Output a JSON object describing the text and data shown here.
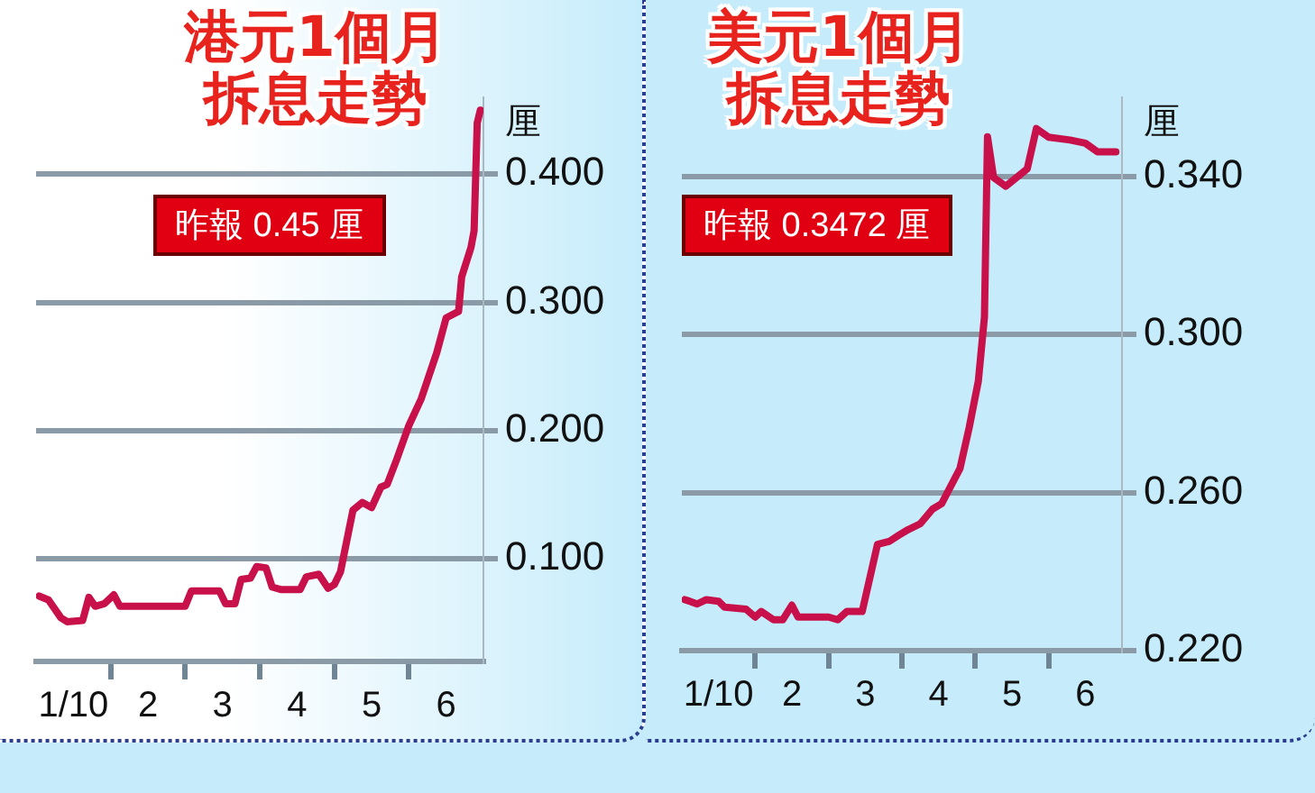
{
  "chart_data": [
    {
      "type": "line",
      "title": "港元1個月拆息走勢",
      "ylabel": "厘",
      "annotations": [
        "昨報 0.45 厘"
      ],
      "color": "#c8104a",
      "marker": "none",
      "grid": "y",
      "x": [
        "--10-01T01:00",
        "--10-01T04:00",
        "--10-01T08:00",
        "--10-01T10:00",
        "--10-01T15:00",
        "--10-01T17:00",
        "--10-01T19:00",
        "--10-01T22:00",
        "--10-02T01:00",
        "--10-02T03:00",
        "--10-03T00:00",
        "--10-03T02:00",
        "--10-03T11:00",
        "--10-03T13:00",
        "--10-03T16:00",
        "--10-03T18:00",
        "--10-03T21:00",
        "--10-03T23:00",
        "--10-04T02:00",
        "--10-04T04:00",
        "--10-04T07:00",
        "--10-04T13:00",
        "--10-04T15:00",
        "--10-04T19:00",
        "--10-04T22:00",
        "--10-05T00:00",
        "--10-05T02:00",
        "--10-05T06:00",
        "--10-05T09:00",
        "--10-05T12:00",
        "--10-05T15:00",
        "--10-05T17:00",
        "--10-05T20:00",
        "--10-06T00:00",
        "--10-06T04:00",
        "--10-06T09:00",
        "--10-06T12:00",
        "--10-06T16:00",
        "--10-06T17:00",
        "--10-06T20:00",
        "--10-06T21:00",
        "--10-06T22:00",
        "--10-06T23:00"
      ],
      "values": [
        0.071,
        0.068,
        0.054,
        0.051,
        0.052,
        0.07,
        0.063,
        0.065,
        0.072,
        0.063,
        0.063,
        0.075,
        0.075,
        0.065,
        0.065,
        0.084,
        0.085,
        0.094,
        0.093,
        0.078,
        0.076,
        0.076,
        0.086,
        0.088,
        0.077,
        0.08,
        0.09,
        0.138,
        0.144,
        0.14,
        0.156,
        0.158,
        0.177,
        0.204,
        0.225,
        0.261,
        0.288,
        0.293,
        0.32,
        0.343,
        0.356,
        0.44,
        0.45
      ],
      "xlim": [
        "--10-01T00:00",
        "--10-07T00:00"
      ],
      "xticks": [
        {
          "value": "--10-01T12:00",
          "label": "1/10"
        },
        {
          "value": "--10-02T00:00",
          "label": null
        },
        {
          "value": "--10-02T12:00",
          "label": "2"
        },
        {
          "value": "--10-03T00:00",
          "label": null
        },
        {
          "value": "--10-03T12:00",
          "label": "3"
        },
        {
          "value": "--10-04T00:00",
          "label": null
        },
        {
          "value": "--10-04T12:00",
          "label": "4"
        },
        {
          "value": "--10-05T00:00",
          "label": null
        },
        {
          "value": "--10-05T12:00",
          "label": "5"
        },
        {
          "value": "--10-06T00:00",
          "label": null
        },
        {
          "value": "--10-06T12:00",
          "label": "6"
        }
      ],
      "ylim": [
        0.02,
        0.46
      ],
      "yticks": [
        {
          "value": 0.1,
          "label": "0.100"
        },
        {
          "value": 0.2,
          "label": "0.200"
        },
        {
          "value": 0.3,
          "label": "0.300"
        },
        {
          "value": 0.4,
          "label": "0.400"
        }
      ]
    },
    {
      "type": "line",
      "title": "美元1個月拆息走勢",
      "ylabel": "厘",
      "annotations": [
        "昨報 0.3472 厘"
      ],
      "color": "#c8104a",
      "marker": "none",
      "grid": "y",
      "x": [
        "--10-01T01:00",
        "--10-01T05:00",
        "--10-01T08:00",
        "--10-01T12:00",
        "--10-01T14:00",
        "--10-01T21:00",
        "--10-02T00:00",
        "--10-02T02:00",
        "--10-02T06:00",
        "--10-02T09:00",
        "--10-02T12:00",
        "--10-02T14:00",
        "--10-03T00:00",
        "--10-03T03:00",
        "--10-03T06:00",
        "--10-03T11:00",
        "--10-03T16:00",
        "--10-03T20:00",
        "--10-03T23:00",
        "--10-04T02:00",
        "--10-04T06:00",
        "--10-04T10:00",
        "--10-04T13:00",
        "--10-04T19:00",
        "--10-04T22:00",
        "--10-05T01:00",
        "--10-05T03:00",
        "--10-05T04:00",
        "--10-05T06:00",
        "--10-05T10:00",
        "--10-05T17:00",
        "--10-05T20:00",
        "--10-06T00:00",
        "--10-06T07:00",
        "--10-06T12:00",
        "--10-06T16:00",
        "--10-06T22:00"
      ],
      "values": [
        0.2329,
        0.2318,
        0.2329,
        0.2325,
        0.231,
        0.2305,
        0.2285,
        0.2299,
        0.2278,
        0.2278,
        0.2315,
        0.2285,
        0.2285,
        0.2278,
        0.2299,
        0.2299,
        0.2469,
        0.2477,
        0.2492,
        0.2506,
        0.2521,
        0.2558,
        0.2572,
        0.2661,
        0.2764,
        0.2882,
        0.3044,
        0.35,
        0.3397,
        0.3375,
        0.3419,
        0.3521,
        0.3499,
        0.3492,
        0.3484,
        0.3462,
        0.3462
      ],
      "xlim": [
        "--10-01T00:00",
        "--10-07T00:00"
      ],
      "xticks": [
        {
          "value": "--10-01T12:00",
          "label": "1/10"
        },
        {
          "value": "--10-02T00:00",
          "label": null
        },
        {
          "value": "--10-02T12:00",
          "label": "2"
        },
        {
          "value": "--10-03T00:00",
          "label": null
        },
        {
          "value": "--10-03T12:00",
          "label": "3"
        },
        {
          "value": "--10-04T00:00",
          "label": null
        },
        {
          "value": "--10-04T12:00",
          "label": "4"
        },
        {
          "value": "--10-05T00:00",
          "label": null
        },
        {
          "value": "--10-05T12:00",
          "label": "5"
        },
        {
          "value": "--10-06T00:00",
          "label": null
        },
        {
          "value": "--10-06T12:00",
          "label": "6"
        }
      ],
      "ylim": [
        0.22,
        0.36
      ],
      "yticks": [
        {
          "value": 0.22,
          "label": "0.220"
        },
        {
          "value": 0.26,
          "label": "0.260"
        },
        {
          "value": 0.3,
          "label": "0.300"
        },
        {
          "value": 0.34,
          "label": "0.340"
        }
      ]
    }
  ]
}
